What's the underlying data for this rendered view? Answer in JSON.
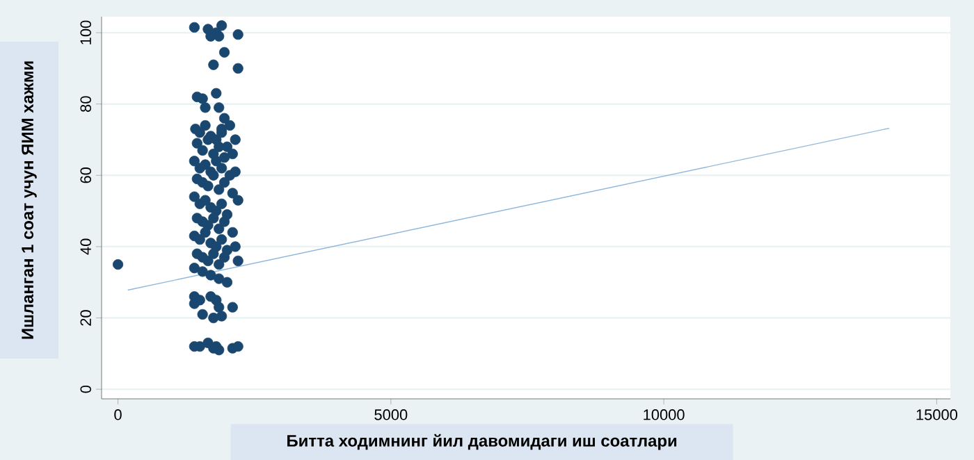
{
  "chart_data": {
    "type": "scatter",
    "xlabel": "Битта ходимнинг йил давомидаги иш соатлари",
    "ylabel": "Ишланган 1 соат учун ЯИМ хажми",
    "xlim": [
      -300,
      15250
    ],
    "ylim": [
      -2.7,
      104.5
    ],
    "xticks": [
      0,
      5000,
      10000,
      15000
    ],
    "yticks": [
      0,
      20,
      40,
      60,
      80,
      100
    ],
    "grid": "y",
    "series": [
      {
        "color": "#1a476f",
        "marker": "circle",
        "x": [
          0,
          1400,
          1650,
          1900,
          1800,
          1700,
          1850,
          2200,
          1950,
          1750,
          2200,
          1450,
          1550,
          1800,
          1600,
          1850,
          1950,
          2050,
          2150,
          1900,
          1400,
          1500,
          1700,
          1800,
          1550,
          1750,
          1900,
          1400,
          2100,
          1850,
          1400,
          1500,
          1650,
          1800,
          1850,
          1750,
          2100,
          2200,
          1420,
          1500,
          1600,
          1700,
          1800,
          1900,
          2000,
          1450,
          1550,
          1650,
          1750,
          1850,
          1950,
          2100,
          1400,
          1500,
          1600,
          1700,
          1800,
          1900,
          2050,
          2150,
          1450,
          1550,
          1650,
          1750,
          1850,
          1950,
          2100,
          1400,
          1500,
          1600,
          1700,
          1800,
          1900,
          2000,
          2200,
          1450,
          1550,
          1650,
          1750,
          1850,
          1950,
          2100,
          1400,
          1500,
          1600,
          1700,
          1800,
          1900,
          2000,
          2150,
          1450,
          1550,
          1650,
          1750,
          1850,
          1950,
          2200,
          1400,
          1550,
          1700,
          1850,
          2000
        ],
        "values": [
          35,
          101.5,
          101,
          102,
          100,
          99,
          99,
          99.5,
          94.5,
          91,
          90,
          82,
          81.5,
          83,
          79,
          79,
          76,
          74,
          70,
          72,
          26,
          25,
          26,
          25,
          21,
          20,
          20.5,
          24,
          23,
          23,
          12,
          12,
          13,
          12,
          11,
          11.5,
          11.5,
          12,
          73,
          72,
          74,
          71,
          70,
          73,
          68,
          69,
          67,
          70,
          66,
          68,
          65,
          66,
          64,
          62,
          63,
          61,
          64,
          62,
          60,
          61,
          59,
          58,
          57,
          60,
          56,
          58,
          55,
          54,
          52,
          53,
          51,
          50,
          52,
          49,
          53,
          48,
          47,
          46,
          48,
          45,
          47,
          44,
          43,
          42,
          44,
          41,
          40,
          42,
          39,
          40,
          38,
          37,
          36,
          38,
          35,
          37,
          36,
          34,
          33,
          32,
          31,
          30
        ]
      },
      {
        "type": "line",
        "color": "#8fb7dc",
        "marker": "none",
        "x": [
          180,
          14130
        ],
        "values": [
          27.8,
          73.2
        ]
      }
    ]
  }
}
